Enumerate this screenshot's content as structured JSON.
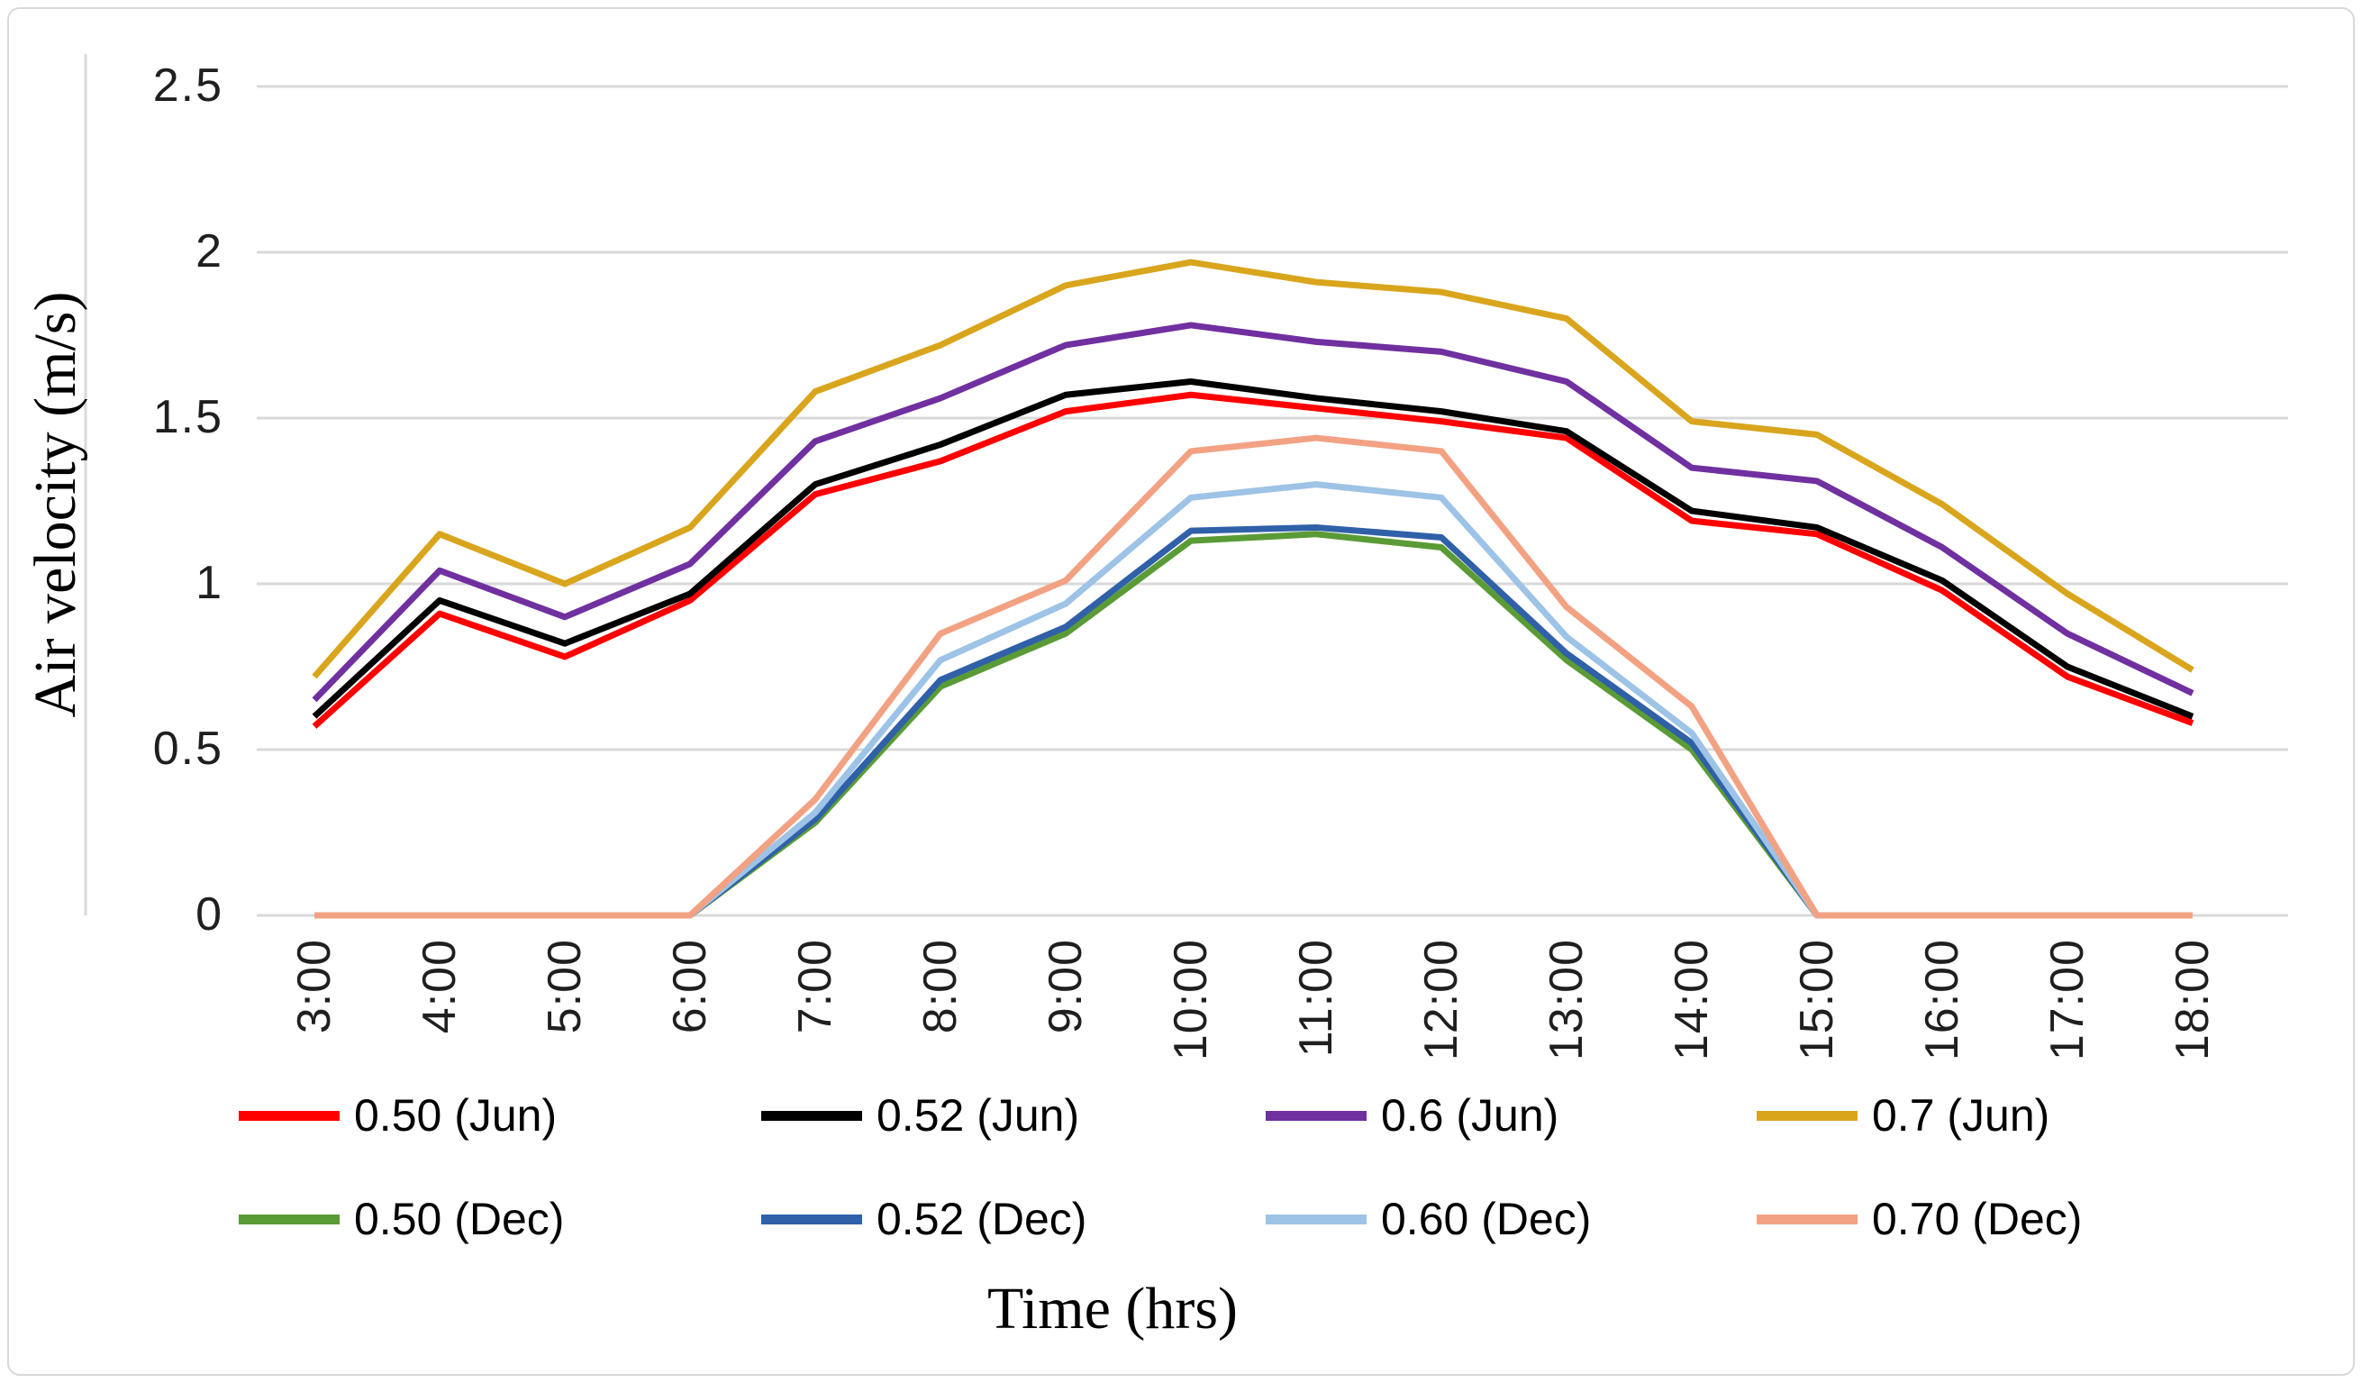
{
  "chart_data": {
    "type": "line",
    "title": "",
    "xlabel": "Time (hrs)",
    "ylabel": "Air velocity (m/s)",
    "categories": [
      "3:00",
      "4:00",
      "5:00",
      "6:00",
      "7:00",
      "8:00",
      "9:00",
      "10:00",
      "11:00",
      "12:00",
      "13:00",
      "14:00",
      "15:00",
      "16:00",
      "17:00",
      "18:00"
    ],
    "y_axis": {
      "ticks": [
        "0",
        "0.5",
        "1",
        "1.5",
        "2",
        "2.5"
      ],
      "min": 0,
      "max": 2.5
    },
    "grid": "horizontal",
    "legend_position": "bottom",
    "legend_rows": [
      [
        0,
        1,
        2,
        3
      ],
      [
        4,
        5,
        6,
        7
      ]
    ],
    "series": [
      {
        "name": "0.50 (Jun)",
        "color": "#FF0000",
        "values": [
          0.57,
          0.91,
          0.78,
          0.95,
          1.27,
          1.37,
          1.52,
          1.57,
          1.53,
          1.49,
          1.44,
          1.19,
          1.15,
          0.98,
          0.72,
          0.58
        ]
      },
      {
        "name": "0.52 (Jun)",
        "color": "#000000",
        "values": [
          0.6,
          0.95,
          0.82,
          0.97,
          1.3,
          1.42,
          1.57,
          1.61,
          1.56,
          1.52,
          1.46,
          1.22,
          1.17,
          1.01,
          0.75,
          0.6
        ]
      },
      {
        "name": "0.6 (Jun)",
        "color": "#7030A0",
        "values": [
          0.65,
          1.04,
          0.9,
          1.06,
          1.43,
          1.56,
          1.72,
          1.78,
          1.73,
          1.7,
          1.61,
          1.35,
          1.31,
          1.11,
          0.85,
          0.67
        ]
      },
      {
        "name": "0.7 (Jun)",
        "color": "#D9A51D",
        "values": [
          0.72,
          1.15,
          1.0,
          1.17,
          1.58,
          1.72,
          1.9,
          1.97,
          1.91,
          1.88,
          1.8,
          1.49,
          1.45,
          1.24,
          0.97,
          0.74
        ]
      },
      {
        "name": "0.50 (Dec)",
        "color": "#5A9B36",
        "values": [
          0,
          0,
          0,
          0,
          0.28,
          0.69,
          0.85,
          1.13,
          1.15,
          1.11,
          0.77,
          0.5,
          0,
          0,
          0,
          0
        ]
      },
      {
        "name": "0.52 (Dec)",
        "color": "#3060A8",
        "values": [
          0,
          0,
          0,
          0,
          0.29,
          0.71,
          0.87,
          1.16,
          1.17,
          1.14,
          0.79,
          0.52,
          0,
          0,
          0,
          0
        ]
      },
      {
        "name": "0.60 (Dec)",
        "color": "#9DC3E6",
        "values": [
          0,
          0,
          0,
          0,
          0.31,
          0.77,
          0.94,
          1.26,
          1.3,
          1.26,
          0.84,
          0.55,
          0,
          0,
          0,
          0
        ]
      },
      {
        "name": "0.70 (Dec)",
        "color": "#F2A283",
        "values": [
          0,
          0,
          0,
          0,
          0.35,
          0.85,
          1.01,
          1.4,
          1.44,
          1.4,
          0.93,
          0.63,
          0,
          0,
          0,
          0
        ]
      }
    ],
    "colors": {
      "gridline": "#D9D9D9",
      "axis_line": "#D9D9D9",
      "tick_text": "#1F1F1F"
    }
  }
}
